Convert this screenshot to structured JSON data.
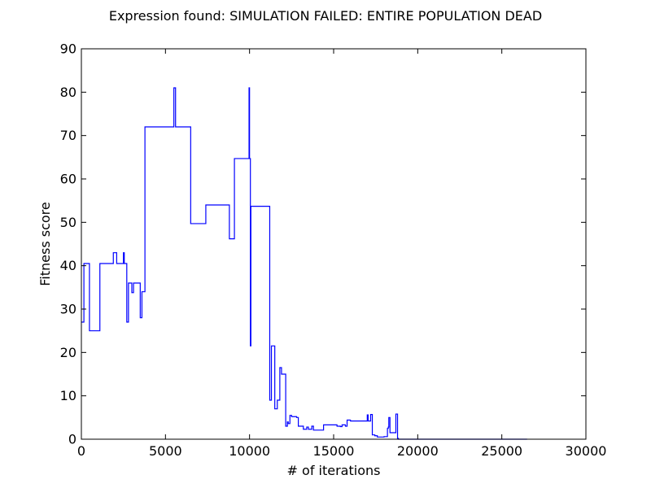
{
  "chart_data": {
    "type": "line",
    "title": "Expression found: SIMULATION FAILED: ENTIRE POPULATION DEAD",
    "xlabel": "# of iterations",
    "ylabel": "Fitness score",
    "xlim": [
      0,
      30000
    ],
    "ylim": [
      0,
      90
    ],
    "xticks": [
      0,
      5000,
      10000,
      15000,
      20000,
      25000,
      30000
    ],
    "yticks": [
      0,
      10,
      20,
      30,
      40,
      50,
      60,
      70,
      80,
      90
    ],
    "grid": false,
    "legend": "none",
    "line_color": "#0000ff",
    "step": "post",
    "series": [
      {
        "x": [
          0,
          150,
          250,
          480,
          1100,
          1900,
          2100,
          2500,
          2550,
          2650,
          2700,
          2800,
          2850,
          3000,
          3100,
          3200,
          3500,
          3600,
          3700,
          3780,
          3850,
          5500,
          5600,
          6500,
          7400,
          8800,
          9100,
          9400,
          9900,
          9970,
          10000,
          10050,
          10080,
          10100,
          11200,
          11300,
          11500,
          11650,
          11800,
          11900,
          11950,
          12150,
          12250,
          12300,
          12400,
          12500,
          12800,
          12900,
          13000,
          13200,
          13400,
          13500,
          13600,
          13700,
          13800,
          14000,
          14400,
          14600,
          15000,
          15200,
          15400,
          15500,
          15700,
          15800,
          16000,
          17000,
          17050,
          17200,
          17300,
          17450,
          17600,
          17800,
          18000,
          18200,
          18250,
          18280,
          18350,
          18400,
          18700,
          18800,
          18850,
          20000,
          26500
        ],
        "y": [
          27,
          40.5,
          40.5,
          25,
          40.5,
          43,
          40.5,
          43,
          40.5,
          40.5,
          27,
          36,
          36,
          33.8,
          36,
          36,
          28,
          34,
          34,
          72,
          72,
          81,
          72,
          49.7,
          54,
          46.2,
          64.7,
          64.7,
          64.7,
          81,
          64.7,
          21.5,
          53.7,
          53.7,
          9,
          21.5,
          7,
          9,
          16.5,
          15,
          15,
          3,
          4,
          3.6,
          5.5,
          5.2,
          5,
          3,
          3,
          2.3,
          2.8,
          2.3,
          2.3,
          3,
          2.1,
          2.1,
          3.3,
          3.3,
          3.3,
          3.0,
          2.9,
          3.3,
          3.0,
          4.4,
          4.2,
          5.6,
          4.2,
          5.7,
          1,
          0.8,
          0.5,
          0.5,
          0.6,
          2.5,
          2.8,
          5,
          1.5,
          1.5,
          5.8,
          0.2,
          0,
          0,
          0
        ]
      }
    ]
  }
}
